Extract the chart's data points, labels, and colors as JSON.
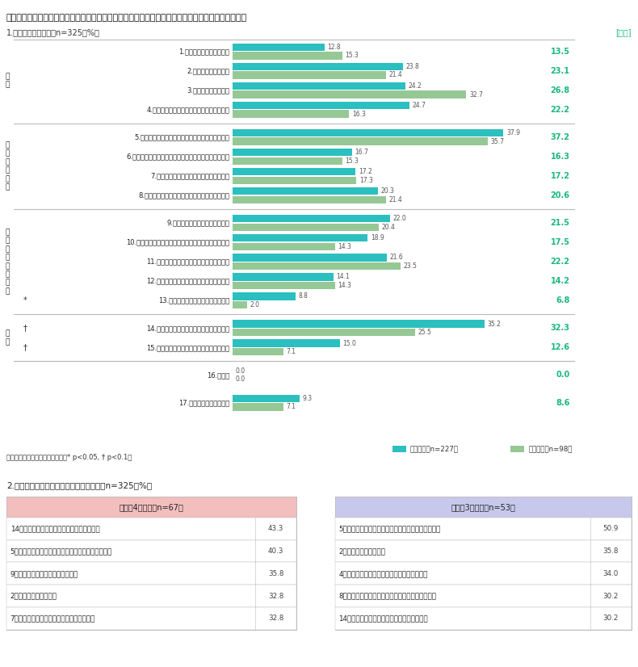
{
  "title": "お勤めの会社における「人事データ活用」の実態として、あてはまるものをすべてお選びください。",
  "section1_title": "1.役割別〈複数回答／n=325／%〉",
  "section1_right": "[全体]",
  "bars": [
    {
      "label": "1.人事部門での関心が低い",
      "teal": 12.8,
      "green": 15.3,
      "total": 13.5,
      "group": "関心",
      "mark": ""
    },
    {
      "label": "2.経営陣の関心が低い",
      "teal": 23.8,
      "green": 21.4,
      "total": 23.1,
      "group": "関心",
      "mark": ""
    },
    {
      "label": "3.従業員の関心が低い",
      "teal": 24.2,
      "green": 32.7,
      "total": 26.8,
      "group": "関心",
      "mark": ""
    },
    {
      "label": "4.経験と勘が重視され、データは軽視される",
      "teal": 24.7,
      "green": 16.3,
      "total": 22.2,
      "group": "関心",
      "mark": ""
    },
    {
      "label": "5.人事スタッフの分析・活用するスキルが足りない",
      "teal": 37.9,
      "green": 35.7,
      "total": 37.2,
      "group": "スキル・工数",
      "mark": ""
    },
    {
      "label": "6.社内の専門家（データアナリストなど）が定着しない",
      "teal": 16.7,
      "green": 15.3,
      "total": 16.3,
      "group": "スキル・工数",
      "mark": ""
    },
    {
      "label": "7.社外の専門家によるアドバイスが必要だ",
      "teal": 17.2,
      "green": 17.3,
      "total": 17.2,
      "group": "スキル・工数",
      "mark": ""
    },
    {
      "label": "8.手間がかかるので、費用対効果を感じられない",
      "teal": 20.3,
      "green": 21.4,
      "total": 20.6,
      "group": "スキル・工数",
      "mark": ""
    },
    {
      "label": "9.従業員の協力を得るのが大変だ",
      "teal": 22.0,
      "green": 20.4,
      "total": 21.5,
      "group": "データ収集・分析",
      "mark": ""
    },
    {
      "label": "10.施策と成果の間に時間差があるので、分析が難しい",
      "teal": 18.9,
      "green": 14.3,
      "total": 17.5,
      "group": "データ収集・分析",
      "mark": ""
    },
    {
      "label": "11.扱うデータが多すぎて、焦点が絞れない",
      "teal": 21.6,
      "green": 23.5,
      "total": 22.2,
      "group": "データ収集・分析",
      "mark": ""
    },
    {
      "label": "12.使うデータや指標に意味が感じられない",
      "teal": 14.1,
      "green": 14.3,
      "total": 14.2,
      "group": "データ収集・分析",
      "mark": ""
    },
    {
      "label": "13.結果の変化に一喜一憂してしまう",
      "teal": 8.8,
      "green": 2.0,
      "total": 6.8,
      "group": "データ収集・分析",
      "mark": "*"
    },
    {
      "label": "14.社内への開示内容、範囲の判断が難しい",
      "teal": 35.2,
      "green": 25.5,
      "total": 32.3,
      "group": "開示",
      "mark": "†"
    },
    {
      "label": "15.社外への開示内容、範囲の判断が難しい",
      "teal": 15.0,
      "green": 7.1,
      "total": 12.6,
      "group": "開示",
      "mark": "†"
    },
    {
      "label": "16.その他",
      "teal": 0.0,
      "green": 0.0,
      "total": 0.0,
      "group": "",
      "mark": ""
    },
    {
      "label": "17.あてはまるものはない",
      "teal": 9.3,
      "green": 7.1,
      "total": 8.6,
      "group": "",
      "mark": ""
    }
  ],
  "group_spans": [
    {
      "name": "関心",
      "start": 0,
      "end": 3
    },
    {
      "name": "スキル・工数",
      "start": 4,
      "end": 7
    },
    {
      "name": "データ収集・分析",
      "start": 8,
      "end": 12
    },
    {
      "name": "開示",
      "start": 13,
      "end": 14
    }
  ],
  "teal_color": "#2BBFBF",
  "green_color": "#96C896",
  "total_color": "#1AB87D",
  "legend_teal": "本社人事（n=227）",
  "legend_green": "部門人事（n=98）",
  "footnote": "統計的に有意差のある項目に印（* p<0.05, † p<0.1）",
  "section2_title": "2.人事データ活用役立ち度別〈複数回答／n=325／%〉",
  "high_group_title": "高群（4以上）（n=67）",
  "low_group_title": "低群（3未満）（n=53）",
  "high_group": [
    {
      "label": "14．社内への開示内容、範囲の判断が難しい",
      "value": 43.3
    },
    {
      "label": "5．人事スタッフの分析・活用するスキルが足りない",
      "value": 40.3
    },
    {
      "label": "9．従業員の協力を得るのが大変だ",
      "value": 35.8
    },
    {
      "label": "2．経営陣の関心が低い",
      "value": 32.8
    },
    {
      "label": "7．社外の専門家によるアドバイスが必要だ",
      "value": 32.8
    }
  ],
  "low_group": [
    {
      "label": "5．人事スタッフの分析・活用するスキルが足りない",
      "value": 50.9
    },
    {
      "label": "2．経営陣の関心が低い",
      "value": 35.8
    },
    {
      "label": "4．経験と勘が重視され、データは軽視される",
      "value": 34.0
    },
    {
      "label": "8．手間がかかるので、費用対効果を感じられない",
      "value": 30.2
    },
    {
      "label": "14．社内への開示内容、範囲の判断が難しい",
      "value": 30.2
    }
  ],
  "high_header_color": "#F2BEBE",
  "low_header_color": "#C8C8EC",
  "table_border_color": "#BBBBBB"
}
